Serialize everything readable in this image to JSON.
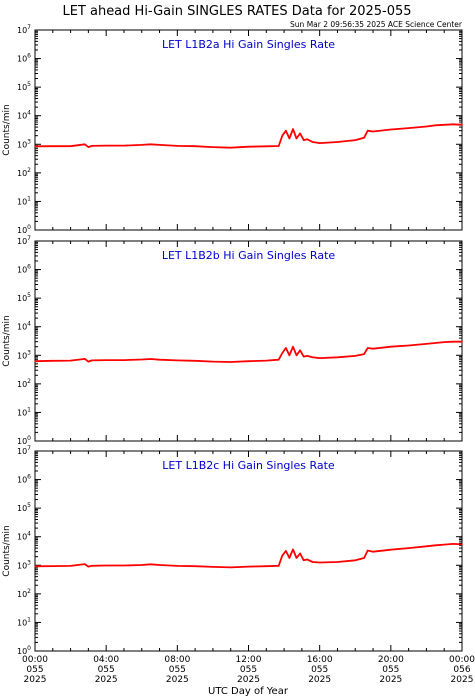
{
  "title": "LET ahead Hi-Gain SINGLES RATES Data for 2025-055",
  "timestamp": "Sun Mar  2 09:56:35 2025 ACE Science Center",
  "xlabel": "UTC Day of Year",
  "colors": {
    "series": "#ff0000",
    "panel_title": "#0000cc",
    "axes": "#000000"
  },
  "chart_data": [
    {
      "type": "line",
      "title": "LET L1B2a Hi Gain Singles Rate",
      "ylabel": "Counts/min",
      "yscale": "log",
      "ylim": [
        1,
        10000000
      ],
      "y_tick_exponents": [
        0,
        1,
        2,
        3,
        4,
        5,
        6,
        7
      ],
      "x": [
        0,
        1,
        2,
        2.8,
        3.0,
        3.2,
        4,
        5,
        6,
        6.5,
        7,
        8,
        9,
        10,
        11,
        12,
        13,
        13.7,
        13.9,
        14.1,
        14.3,
        14.5,
        14.7,
        14.9,
        15.1,
        15.3,
        15.6,
        16,
        17,
        18,
        18.5,
        18.7,
        19,
        20,
        21,
        22,
        22.5,
        23,
        23.5,
        24
      ],
      "values": [
        850,
        860,
        860,
        1000,
        800,
        880,
        900,
        900,
        950,
        1000,
        950,
        880,
        860,
        800,
        760,
        820,
        850,
        870,
        2000,
        3000,
        1600,
        3400,
        1600,
        2400,
        1400,
        1500,
        1200,
        1100,
        1200,
        1400,
        1700,
        3000,
        2800,
        3300,
        3700,
        4200,
        4600,
        4800,
        5000,
        4800
      ]
    },
    {
      "type": "line",
      "title": "LET L1B2b Hi Gain Singles Rate",
      "ylabel": "Counts/min",
      "yscale": "log",
      "ylim": [
        1,
        10000000
      ],
      "y_tick_exponents": [
        0,
        1,
        2,
        3,
        4,
        5,
        6,
        7
      ],
      "x": [
        0,
        1,
        2,
        2.8,
        3.0,
        3.2,
        4,
        5,
        6,
        6.5,
        7,
        8,
        9,
        10,
        11,
        12,
        13,
        13.7,
        13.9,
        14.1,
        14.3,
        14.5,
        14.7,
        14.9,
        15.1,
        15.3,
        15.6,
        16,
        17,
        18,
        18.5,
        18.7,
        19,
        20,
        21,
        22,
        22.5,
        23,
        23.5,
        24
      ],
      "values": [
        620,
        640,
        650,
        750,
        600,
        660,
        680,
        680,
        710,
        740,
        700,
        660,
        640,
        600,
        580,
        620,
        650,
        700,
        1200,
        1800,
        1000,
        2000,
        1000,
        1500,
        900,
        950,
        850,
        800,
        850,
        950,
        1100,
        1800,
        1700,
        2000,
        2200,
        2500,
        2700,
        2900,
        3000,
        3000
      ]
    },
    {
      "type": "line",
      "title": "LET L1B2c Hi Gain Singles Rate",
      "ylabel": "Counts/min",
      "yscale": "log",
      "ylim": [
        1,
        10000000
      ],
      "y_tick_exponents": [
        0,
        1,
        2,
        3,
        4,
        5,
        6,
        7
      ],
      "x": [
        0,
        1,
        2,
        2.8,
        3.0,
        3.2,
        4,
        5,
        6,
        6.5,
        7,
        8,
        9,
        10,
        11,
        12,
        13,
        13.7,
        13.9,
        14.1,
        14.3,
        14.5,
        14.7,
        14.9,
        15.1,
        15.3,
        15.6,
        16,
        17,
        18,
        18.5,
        18.7,
        19,
        20,
        21,
        22,
        22.5,
        23,
        23.5,
        24
      ],
      "values": [
        920,
        940,
        950,
        1100,
        900,
        960,
        980,
        980,
        1020,
        1080,
        1020,
        950,
        930,
        880,
        840,
        900,
        930,
        960,
        2200,
        3200,
        1800,
        3600,
        1800,
        2600,
        1500,
        1600,
        1300,
        1250,
        1300,
        1500,
        1800,
        3300,
        3000,
        3500,
        4000,
        4600,
        5000,
        5300,
        5600,
        5400
      ]
    }
  ],
  "x_ticks": [
    {
      "time": "00:00",
      "doy": "055",
      "year": "2025"
    },
    {
      "time": "04:00",
      "doy": "055",
      "year": "2025"
    },
    {
      "time": "08:00",
      "doy": "055",
      "year": "2025"
    },
    {
      "time": "12:00",
      "doy": "055",
      "year": "2025"
    },
    {
      "time": "16:00",
      "doy": "055",
      "year": "2025"
    },
    {
      "time": "20:00",
      "doy": "055",
      "year": "2025"
    },
    {
      "time": "00:00",
      "doy": "056",
      "year": "2025"
    }
  ],
  "x_range_hours": [
    0,
    24
  ]
}
